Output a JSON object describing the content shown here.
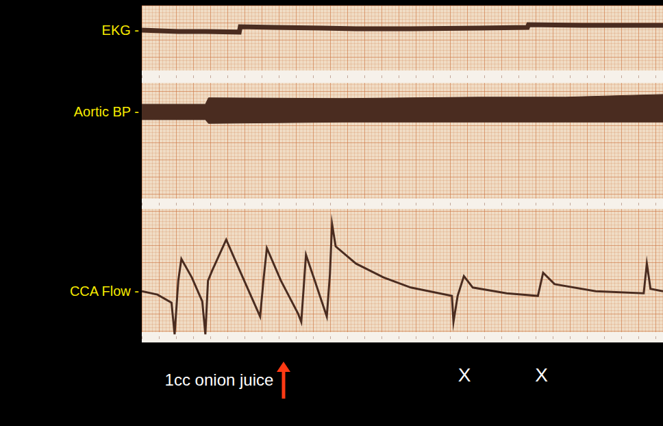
{
  "chart_data": {
    "type": "line",
    "xlim": [
      0,
      100
    ],
    "ylim": [
      0,
      100
    ],
    "tick_labels": false,
    "grid": true,
    "series": [
      {
        "name": "EKG -",
        "color": "#4a2c20",
        "x": [
          0,
          7.0,
          12.2,
          18.7,
          18.9,
          25.4,
          34.6,
          41.1,
          51.6,
          64.8,
          74.0,
          74.2,
          84.5,
          100
        ],
        "values": [
          92.7,
          92.3,
          92.3,
          92.1,
          93.7,
          93.5,
          93.3,
          93.1,
          93.1,
          93.3,
          93.5,
          94.3,
          94.1,
          94.1
        ]
      },
      {
        "name": "Aortic BP -",
        "color": "#4a2c20",
        "x": [
          0,
          12.2,
          12.8,
          38.5,
          64.8,
          81.3,
          100
        ],
        "values": [
          68.4,
          68.4,
          68.8,
          68.9,
          69.1,
          69.1,
          69.5
        ],
        "low": [
          66.1,
          66.1,
          65.0,
          65.4,
          65.4,
          65.4,
          65.4
        ],
        "high": [
          70.7,
          70.7,
          72.6,
          72.4,
          72.8,
          72.8,
          73.6
        ]
      },
      {
        "name": "CCA Flow -",
        "color": "#4a2c20",
        "x": [
          0,
          3.0,
          5.7,
          6.3,
          7.0,
          7.6,
          9.6,
          11.6,
          12.2,
          12.7,
          13.5,
          16.2,
          18.8,
          22.7,
          23.4,
          24.0,
          26.7,
          30.0,
          30.6,
          31.5,
          33.2,
          35.5,
          36.1,
          36.5,
          37.2,
          41.1,
          46.4,
          51.6,
          59.5,
          59.8,
          60.6,
          61.8,
          63.5,
          70.0,
          76.0,
          77.0,
          79.2,
          87.1,
          96.3,
          96.9,
          97.6,
          100
        ],
        "values": [
          15.2,
          14.2,
          11.8,
          2.4,
          18.3,
          24.8,
          19.3,
          12.2,
          2.4,
          18.3,
          21.3,
          30.5,
          21.3,
          7.7,
          19.3,
          28.0,
          18.3,
          8.5,
          6.1,
          26.0,
          18.3,
          7.7,
          20.3,
          35.2,
          28.5,
          23.4,
          19.3,
          16.3,
          13.8,
          6.1,
          13.8,
          19.7,
          16.3,
          14.6,
          13.8,
          20.7,
          17.3,
          15.2,
          14.6,
          23.4,
          15.9,
          15.2
        ]
      }
    ],
    "annotations": [
      {
        "text": "1cc onion juice",
        "x": 27.2,
        "marker": "arrow",
        "color": "#ff3a14"
      },
      {
        "text": "X",
        "x": 61.9
      },
      {
        "text": "X",
        "x": 76.7
      }
    ]
  }
}
